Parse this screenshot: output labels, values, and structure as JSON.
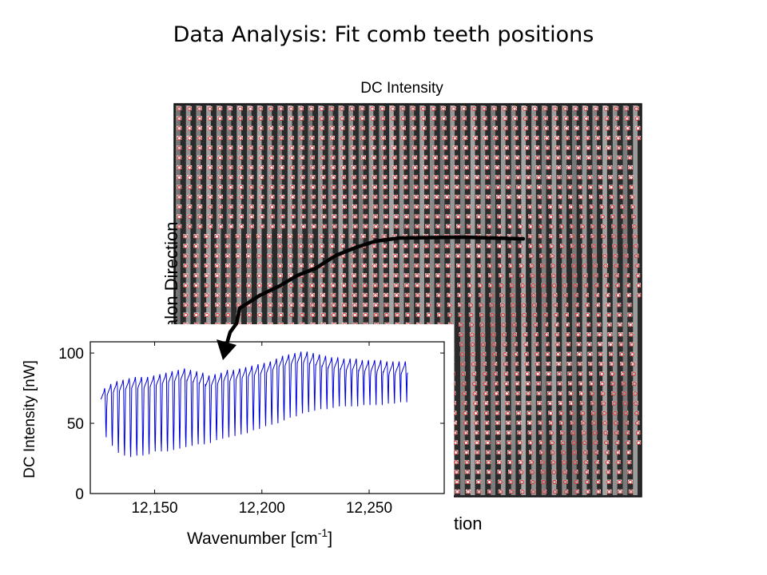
{
  "slide": {
    "title": "Data Analysis: Fit comb teeth positions"
  },
  "image_panel": {
    "title": "DC Intensity",
    "ylabel_visible": "alon Direction",
    "xlabel_visible": "tion",
    "marker_color": "#e03030",
    "path_color": "#000000"
  },
  "chart_data": {
    "type": "line",
    "title": "",
    "xlabel": "Wavenumber [cm-1]",
    "xlabel_parts": {
      "base": "Wavenumber [cm",
      "sup": "-1",
      "end": "]"
    },
    "ylabel": "DC Intensity [nW]",
    "xlim": [
      12120,
      12285
    ],
    "ylim": [
      0,
      108
    ],
    "xticks": [
      12150,
      12200,
      12250
    ],
    "xtick_labels": [
      "12,150",
      "12,200",
      "12,250"
    ],
    "yticks": [
      0,
      50,
      100
    ],
    "ytick_labels": [
      "0",
      "50",
      "100"
    ],
    "series": [
      {
        "color": "#0000dd",
        "x_start": 12125,
        "x_end": 12268,
        "teeth_count": 50,
        "peak_values": [
          75,
          78,
          80,
          81,
          82,
          83,
          83,
          83,
          84,
          85,
          86,
          87,
          88,
          89,
          88,
          87,
          86,
          84,
          85,
          86,
          88,
          88,
          89,
          90,
          91,
          92,
          93,
          94,
          96,
          98,
          99,
          100,
          101,
          101,
          100,
          99,
          98,
          97,
          97,
          96,
          96,
          96,
          95,
          95,
          95,
          95,
          94,
          94,
          94,
          94
        ],
        "dip_values": [
          40,
          34,
          29,
          27,
          26,
          27,
          27,
          28,
          30,
          30,
          30,
          31,
          32,
          33,
          34,
          35,
          35,
          36,
          38,
          39,
          40,
          41,
          42,
          43,
          45,
          46,
          48,
          49,
          50,
          52,
          54,
          55,
          57,
          58,
          59,
          60,
          60,
          61,
          62,
          62,
          62,
          62,
          63,
          63,
          63,
          63,
          64,
          64,
          65,
          65
        ]
      }
    ]
  }
}
